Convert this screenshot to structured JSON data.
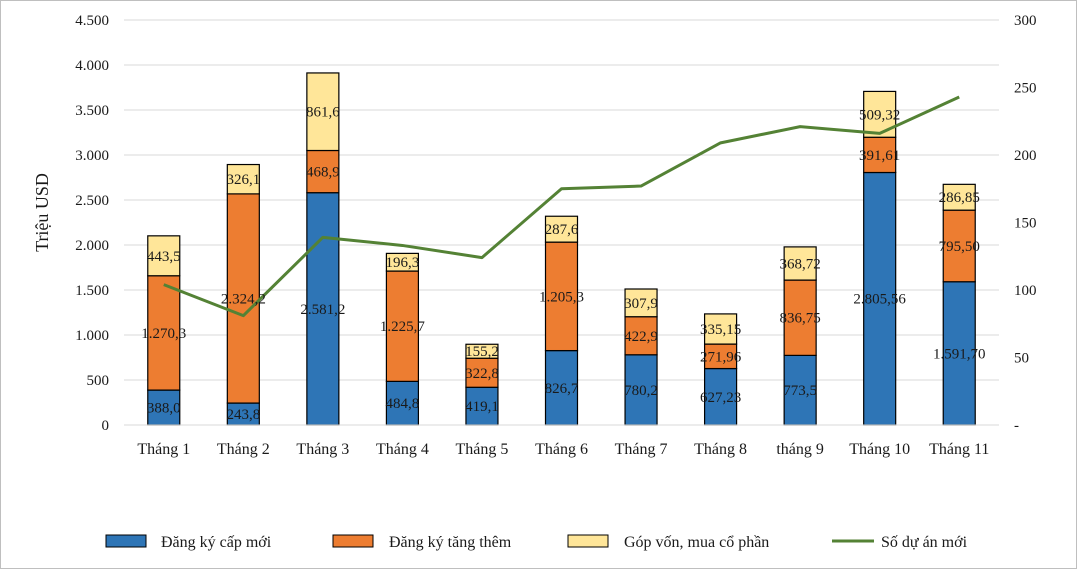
{
  "chart_data": {
    "type": "bar",
    "stacked": true,
    "ylabel": "Triệu USD",
    "ylim": [
      0,
      4500
    ],
    "y_ticks": [
      0,
      500,
      1000,
      1500,
      2000,
      2500,
      3000,
      3500,
      4000,
      4500
    ],
    "y_tick_labels": [
      "0",
      "500",
      "1.000",
      "1.500",
      "2.000",
      "2.500",
      "3.000",
      "3.500",
      "4.000",
      "4.500"
    ],
    "y2lim": [
      0,
      300
    ],
    "y2_ticks": [
      0,
      50,
      100,
      150,
      200,
      250,
      300
    ],
    "y2_tick_labels": [
      "-",
      "50",
      "100",
      "150",
      "200",
      "250",
      "300"
    ],
    "categories": [
      "Tháng 1",
      "Tháng 2",
      "Tháng 3",
      "Tháng 4",
      "Tháng 5",
      "Tháng 6",
      "Tháng 7",
      "Tháng 8",
      "tháng 9",
      "Tháng 10",
      "Tháng 11"
    ],
    "series": [
      {
        "name": "Đăng ký cấp mới",
        "color": "#2e75b6",
        "values": [
          388.0,
          243.8,
          2581.2,
          484.8,
          419.1,
          826.7,
          780.2,
          627.23,
          773.5,
          2805.56,
          1591.7
        ],
        "labels": [
          "388,0",
          "243,8",
          "2.581,2",
          "484,8",
          "419,1",
          "826,7",
          "780,2",
          "627,23",
          "773,5",
          "2.805,56",
          "1.591,70"
        ]
      },
      {
        "name": "Đăng ký tăng thêm",
        "color": "#ed7d31",
        "values": [
          1270.3,
          2324.2,
          468.9,
          1225.7,
          322.8,
          1205.3,
          422.9,
          271.96,
          836.75,
          391.61,
          795.5
        ],
        "labels": [
          "1.270,3",
          "2.324,2",
          "468,9",
          "1.225,7",
          "322,8",
          "1.205,3",
          "422,9",
          "271,96",
          "836,75",
          "391,61",
          "795,50"
        ]
      },
      {
        "name": "Góp vốn, mua cổ phần",
        "color": "#ffe699",
        "values": [
          443.5,
          326.1,
          861.6,
          196.3,
          155.2,
          287.6,
          307.9,
          335.15,
          368.72,
          509.32,
          286.85
        ],
        "labels": [
          "443,5",
          "326,1",
          "861,6",
          "196,3",
          "155,2",
          "287,6",
          "307,9",
          "335,15",
          "368,72",
          "509,32",
          "286,85"
        ]
      }
    ],
    "line_series": {
      "name": "Số dự án mới",
      "color": "#548235",
      "axis": "right",
      "values": [
        104,
        81,
        139,
        133,
        124,
        175,
        177,
        209,
        221,
        216,
        243
      ]
    },
    "legend_position": "bottom"
  }
}
